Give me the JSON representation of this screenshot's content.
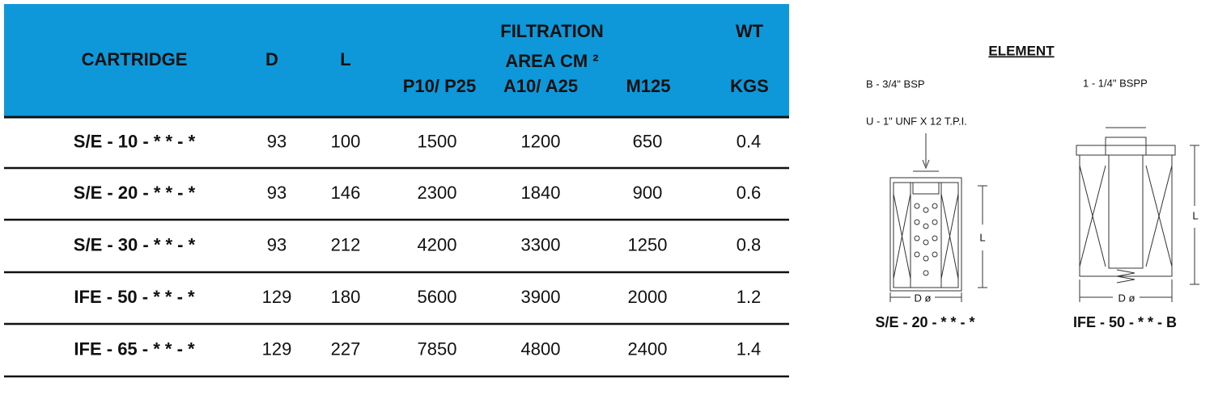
{
  "table": {
    "header": {
      "cartridge": "CARTRIDGE",
      "d": "D",
      "l": "L",
      "filtration": "FILTRATION",
      "area": "AREA CM ²",
      "p10": "P10/ P25",
      "a10": "A10/ A25",
      "m125": "M125",
      "wt": "WT",
      "kgs": "KGS"
    },
    "rows": [
      [
        "S/E - 10 - * * - *",
        93,
        100,
        1500,
        1200,
        650,
        0.4
      ],
      [
        "S/E - 20 - * * - *",
        93,
        146,
        2300,
        1840,
        900,
        0.6
      ],
      [
        "S/E - 30 - * * - *",
        93,
        212,
        4200,
        3300,
        1250,
        0.8
      ],
      [
        "IFE - 50 - * * - *",
        129,
        180,
        5600,
        3900,
        2000,
        1.2
      ],
      [
        "IFE - 65 - * * - *",
        129,
        227,
        7850,
        4800,
        2400,
        1.4
      ]
    ]
  },
  "element": {
    "title": "ELEMENT",
    "left": {
      "port": "B - 3/4\" BSP",
      "thread": "U - 1\" UNF X 12 T.P.I.",
      "length": "L",
      "diameter": "D ø",
      "label": "S/E - 20 - * * - *"
    },
    "right": {
      "port": "1 - 1/4\" BSPP",
      "length": "L",
      "diameter": "D ø",
      "label": "IFE - 50 - * * - B"
    }
  }
}
